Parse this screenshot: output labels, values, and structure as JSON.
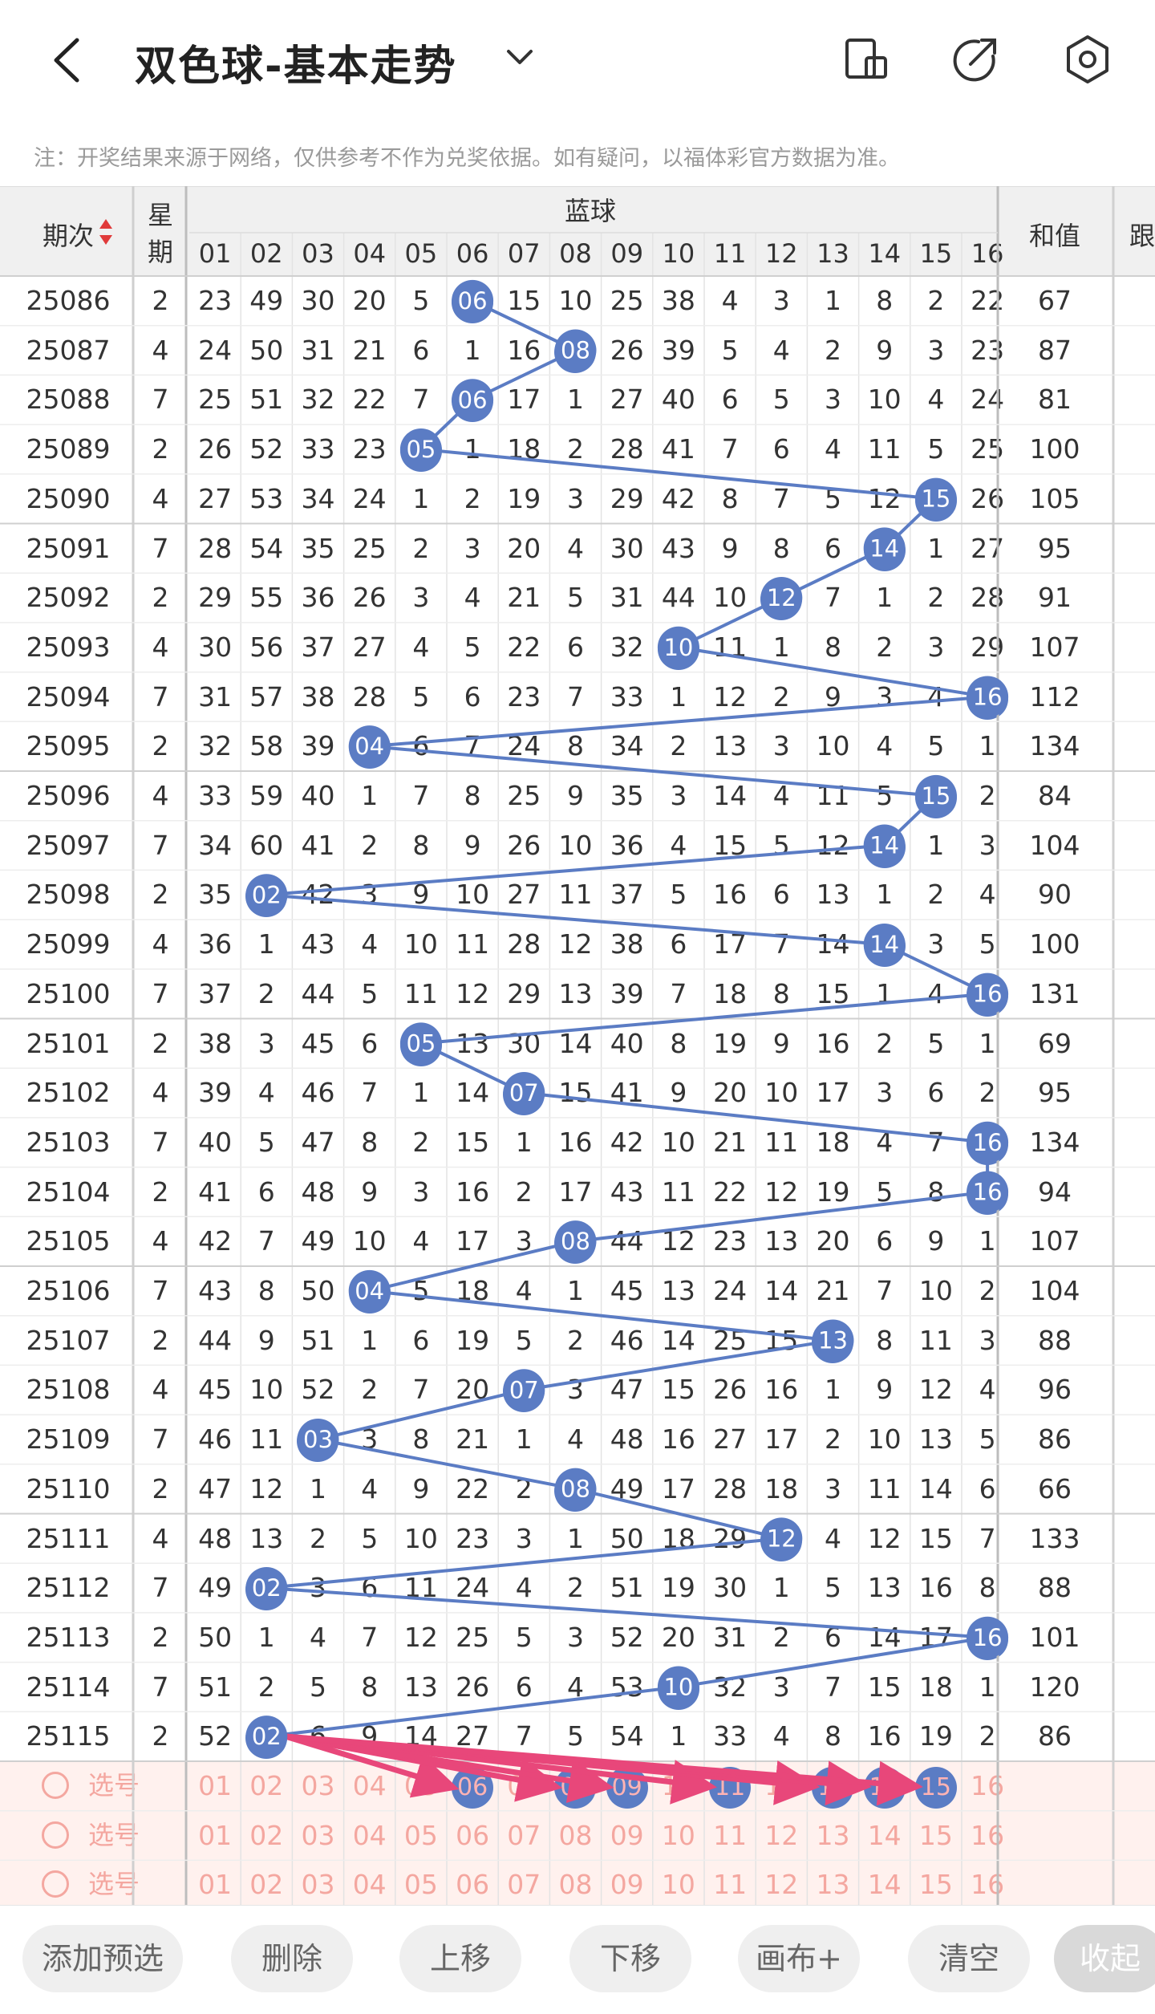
{
  "header": {
    "title": "双色球-基本走势"
  },
  "note": "注：开奖结果来源于网络，仅供参考不作为兑奖依据。如有疑问，以福体彩官方数据为准。",
  "table": {
    "col_issue": "期次",
    "col_week": "星期",
    "col_blue": "蓝球",
    "col_sum": "和值",
    "col_cut": "跟",
    "blue_headers": [
      "01",
      "02",
      "03",
      "04",
      "05",
      "06",
      "07",
      "08",
      "09",
      "10",
      "11",
      "12",
      "13",
      "14",
      "15",
      "16"
    ],
    "rows": [
      {
        "issue": "25086",
        "week": "2",
        "hit": 6,
        "cells": [
          "23",
          "49",
          "30",
          "20",
          "5",
          "06",
          "15",
          "10",
          "25",
          "38",
          "4",
          "3",
          "1",
          "8",
          "2",
          "22"
        ],
        "sum": "67"
      },
      {
        "issue": "25087",
        "week": "4",
        "hit": 8,
        "cells": [
          "24",
          "50",
          "31",
          "21",
          "6",
          "1",
          "16",
          "08",
          "26",
          "39",
          "5",
          "4",
          "2",
          "9",
          "3",
          "23"
        ],
        "sum": "87"
      },
      {
        "issue": "25088",
        "week": "7",
        "hit": 6,
        "cells": [
          "25",
          "51",
          "32",
          "22",
          "7",
          "06",
          "17",
          "1",
          "27",
          "40",
          "6",
          "5",
          "3",
          "10",
          "4",
          "24"
        ],
        "sum": "81"
      },
      {
        "issue": "25089",
        "week": "2",
        "hit": 5,
        "cells": [
          "26",
          "52",
          "33",
          "23",
          "05",
          "1",
          "18",
          "2",
          "28",
          "41",
          "7",
          "6",
          "4",
          "11",
          "5",
          "25"
        ],
        "sum": "100"
      },
      {
        "issue": "25090",
        "week": "4",
        "hit": 15,
        "cells": [
          "27",
          "53",
          "34",
          "24",
          "1",
          "2",
          "19",
          "3",
          "29",
          "42",
          "8",
          "7",
          "5",
          "12",
          "15",
          "26"
        ],
        "sum": "105"
      },
      {
        "issue": "25091",
        "week": "7",
        "hit": 14,
        "cells": [
          "28",
          "54",
          "35",
          "25",
          "2",
          "3",
          "20",
          "4",
          "30",
          "43",
          "9",
          "8",
          "6",
          "14",
          "1",
          "27"
        ],
        "sum": "95"
      },
      {
        "issue": "25092",
        "week": "2",
        "hit": 12,
        "cells": [
          "29",
          "55",
          "36",
          "26",
          "3",
          "4",
          "21",
          "5",
          "31",
          "44",
          "10",
          "12",
          "7",
          "1",
          "2",
          "28"
        ],
        "sum": "91"
      },
      {
        "issue": "25093",
        "week": "4",
        "hit": 10,
        "cells": [
          "30",
          "56",
          "37",
          "27",
          "4",
          "5",
          "22",
          "6",
          "32",
          "10",
          "11",
          "1",
          "8",
          "2",
          "3",
          "29"
        ],
        "sum": "107"
      },
      {
        "issue": "25094",
        "week": "7",
        "hit": 16,
        "cells": [
          "31",
          "57",
          "38",
          "28",
          "5",
          "6",
          "23",
          "7",
          "33",
          "1",
          "12",
          "2",
          "9",
          "3",
          "4",
          "16"
        ],
        "sum": "112"
      },
      {
        "issue": "25095",
        "week": "2",
        "hit": 4,
        "cells": [
          "32",
          "58",
          "39",
          "04",
          "6",
          "7",
          "24",
          "8",
          "34",
          "2",
          "13",
          "3",
          "10",
          "4",
          "5",
          "1"
        ],
        "sum": "134"
      },
      {
        "issue": "25096",
        "week": "4",
        "hit": 15,
        "cells": [
          "33",
          "59",
          "40",
          "1",
          "7",
          "8",
          "25",
          "9",
          "35",
          "3",
          "14",
          "4",
          "11",
          "5",
          "15",
          "2"
        ],
        "sum": "84"
      },
      {
        "issue": "25097",
        "week": "7",
        "hit": 14,
        "cells": [
          "34",
          "60",
          "41",
          "2",
          "8",
          "9",
          "26",
          "10",
          "36",
          "4",
          "15",
          "5",
          "12",
          "14",
          "1",
          "3"
        ],
        "sum": "104"
      },
      {
        "issue": "25098",
        "week": "2",
        "hit": 2,
        "cells": [
          "35",
          "02",
          "42",
          "3",
          "9",
          "10",
          "27",
          "11",
          "37",
          "5",
          "16",
          "6",
          "13",
          "1",
          "2",
          "4"
        ],
        "sum": "90"
      },
      {
        "issue": "25099",
        "week": "4",
        "hit": 14,
        "cells": [
          "36",
          "1",
          "43",
          "4",
          "10",
          "11",
          "28",
          "12",
          "38",
          "6",
          "17",
          "7",
          "14",
          "14",
          "3",
          "5"
        ],
        "sum": "100"
      },
      {
        "issue": "25100",
        "week": "7",
        "hit": 16,
        "cells": [
          "37",
          "2",
          "44",
          "5",
          "11",
          "12",
          "29",
          "13",
          "39",
          "7",
          "18",
          "8",
          "15",
          "1",
          "4",
          "16"
        ],
        "sum": "131"
      },
      {
        "issue": "25101",
        "week": "2",
        "hit": 5,
        "cells": [
          "38",
          "3",
          "45",
          "6",
          "05",
          "13",
          "30",
          "14",
          "40",
          "8",
          "19",
          "9",
          "16",
          "2",
          "5",
          "1"
        ],
        "sum": "69"
      },
      {
        "issue": "25102",
        "week": "4",
        "hit": 7,
        "cells": [
          "39",
          "4",
          "46",
          "7",
          "1",
          "14",
          "07",
          "15",
          "41",
          "9",
          "20",
          "10",
          "17",
          "3",
          "6",
          "2"
        ],
        "sum": "95"
      },
      {
        "issue": "25103",
        "week": "7",
        "hit": 16,
        "cells": [
          "40",
          "5",
          "47",
          "8",
          "2",
          "15",
          "1",
          "16",
          "42",
          "10",
          "21",
          "11",
          "18",
          "4",
          "7",
          "16"
        ],
        "sum": "134"
      },
      {
        "issue": "25104",
        "week": "2",
        "hit": 16,
        "cells": [
          "41",
          "6",
          "48",
          "9",
          "3",
          "16",
          "2",
          "17",
          "43",
          "11",
          "22",
          "12",
          "19",
          "5",
          "8",
          "16"
        ],
        "sum": "94"
      },
      {
        "issue": "25105",
        "week": "4",
        "hit": 8,
        "cells": [
          "42",
          "7",
          "49",
          "10",
          "4",
          "17",
          "3",
          "08",
          "44",
          "12",
          "23",
          "13",
          "20",
          "6",
          "9",
          "1"
        ],
        "sum": "107"
      },
      {
        "issue": "25106",
        "week": "7",
        "hit": 4,
        "cells": [
          "43",
          "8",
          "50",
          "04",
          "5",
          "18",
          "4",
          "1",
          "45",
          "13",
          "24",
          "14",
          "21",
          "7",
          "10",
          "2"
        ],
        "sum": "104"
      },
      {
        "issue": "25107",
        "week": "2",
        "hit": 13,
        "cells": [
          "44",
          "9",
          "51",
          "1",
          "6",
          "19",
          "5",
          "2",
          "46",
          "14",
          "25",
          "15",
          "13",
          "8",
          "11",
          "3"
        ],
        "sum": "88"
      },
      {
        "issue": "25108",
        "week": "4",
        "hit": 7,
        "cells": [
          "45",
          "10",
          "52",
          "2",
          "7",
          "20",
          "07",
          "3",
          "47",
          "15",
          "26",
          "16",
          "1",
          "9",
          "12",
          "4"
        ],
        "sum": "96"
      },
      {
        "issue": "25109",
        "week": "7",
        "hit": 3,
        "cells": [
          "46",
          "11",
          "03",
          "3",
          "8",
          "21",
          "1",
          "4",
          "48",
          "16",
          "27",
          "17",
          "2",
          "10",
          "13",
          "5"
        ],
        "sum": "86"
      },
      {
        "issue": "25110",
        "week": "2",
        "hit": 8,
        "cells": [
          "47",
          "12",
          "1",
          "4",
          "9",
          "22",
          "2",
          "08",
          "49",
          "17",
          "28",
          "18",
          "3",
          "11",
          "14",
          "6"
        ],
        "sum": "66"
      },
      {
        "issue": "25111",
        "week": "4",
        "hit": 12,
        "cells": [
          "48",
          "13",
          "2",
          "5",
          "10",
          "23",
          "3",
          "1",
          "50",
          "18",
          "29",
          "12",
          "4",
          "12",
          "15",
          "7"
        ],
        "sum": "133"
      },
      {
        "issue": "25112",
        "week": "7",
        "hit": 2,
        "cells": [
          "49",
          "02",
          "3",
          "6",
          "11",
          "24",
          "4",
          "2",
          "51",
          "19",
          "30",
          "1",
          "5",
          "13",
          "16",
          "8"
        ],
        "sum": "88"
      },
      {
        "issue": "25113",
        "week": "2",
        "hit": 16,
        "cells": [
          "50",
          "1",
          "4",
          "7",
          "12",
          "25",
          "5",
          "3",
          "52",
          "20",
          "31",
          "2",
          "6",
          "14",
          "17",
          "16"
        ],
        "sum": "101"
      },
      {
        "issue": "25114",
        "week": "7",
        "hit": 10,
        "cells": [
          "51",
          "2",
          "5",
          "8",
          "13",
          "26",
          "6",
          "4",
          "53",
          "10",
          "32",
          "3",
          "7",
          "15",
          "18",
          "1"
        ],
        "sum": "120"
      },
      {
        "issue": "25115",
        "week": "2",
        "hit": 2,
        "cells": [
          "52",
          "02",
          "6",
          "9",
          "14",
          "27",
          "7",
          "5",
          "54",
          "1",
          "33",
          "4",
          "8",
          "16",
          "19",
          "2"
        ],
        "sum": "86"
      }
    ],
    "pick_rows": [
      {
        "label": "选号",
        "nums": [
          "01",
          "02",
          "03",
          "04",
          "05",
          "06",
          "07",
          "08",
          "09",
          "10",
          "11",
          "12",
          "13",
          "14",
          "15",
          "16"
        ],
        "selected": [
          6,
          8,
          9,
          11,
          13,
          14,
          15
        ]
      },
      {
        "label": "选号",
        "nums": [
          "01",
          "02",
          "03",
          "04",
          "05",
          "06",
          "07",
          "08",
          "09",
          "10",
          "11",
          "12",
          "13",
          "14",
          "15",
          "16"
        ],
        "selected": []
      },
      {
        "label": "选号",
        "nums": [
          "01",
          "02",
          "03",
          "04",
          "05",
          "06",
          "07",
          "08",
          "09",
          "10",
          "11",
          "12",
          "13",
          "14",
          "15",
          "16"
        ],
        "selected": []
      }
    ]
  },
  "toolbar": {
    "add": "添加预选",
    "del": "删除",
    "up": "上移",
    "down": "下移",
    "canvas": "画布+",
    "clear": "清空",
    "collapse": "收起"
  },
  "colors": {
    "ball": "#5b7cc4",
    "arrow": "#e8477a",
    "pick_bg": "#fff1ee",
    "pick_text": "#f4a7a0"
  }
}
